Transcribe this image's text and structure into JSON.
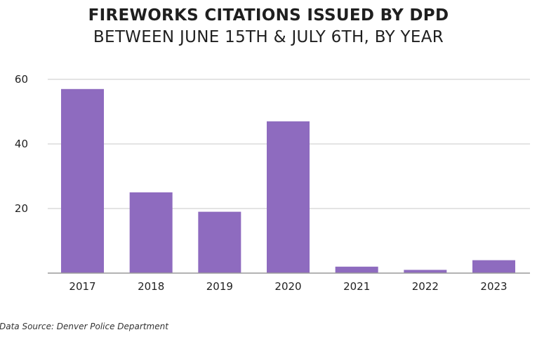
{
  "chart_data": {
    "type": "bar",
    "title": "FIREWORKS CITATIONS ISSUED BY DPD",
    "subtitle": "BETWEEN JUNE 15TH & JULY 6TH, BY YEAR",
    "categories": [
      "2017",
      "2018",
      "2019",
      "2020",
      "2021",
      "2022",
      "2023"
    ],
    "values": [
      57,
      25,
      19,
      47,
      2,
      1,
      4
    ],
    "ylim": [
      0,
      60
    ],
    "yticks": [
      20,
      40,
      60
    ],
    "grid": true,
    "colors": {
      "bar": "#8e6bbf",
      "grid": "#c8c8c8",
      "axis": "#9a9a9a"
    }
  },
  "source": "Data Source: Denver Police Department"
}
